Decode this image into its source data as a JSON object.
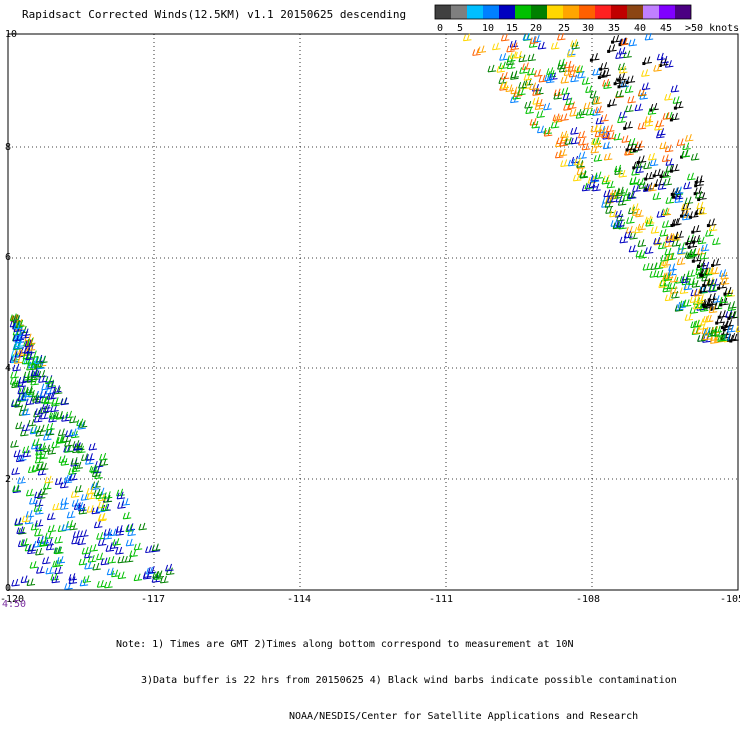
{
  "title": "Rapidsact Corrected Winds(12.5KM) v1.1 20150625 descending",
  "legend": {
    "colors": [
      "#404040",
      "#7f7f7f",
      "#00bfff",
      "#0080ff",
      "#0000c0",
      "#00c000",
      "#008000",
      "#ffd700",
      "#ffa500",
      "#ff6000",
      "#ff2020",
      "#c00000",
      "#8b4513",
      "#c080ff",
      "#8000ff",
      "#4b0082"
    ],
    "labels": [
      "0",
      "5",
      "10",
      "15",
      "20",
      "25",
      "30",
      "35",
      "40",
      "45",
      ">50 knots"
    ]
  },
  "axes": {
    "x_ticks": [
      "-120",
      "-117",
      "-114",
      "-111",
      "-108",
      "-105"
    ],
    "y_ticks": [
      "0",
      "2",
      "4",
      "6",
      "8",
      "10"
    ]
  },
  "time_label": "4:50",
  "notes": [
    "Note: 1) Times are GMT 2)Times along bottom correspond to measurement at 10N",
    "3)Data buffer is 22 hrs from 20150625 4) Black wind barbs indicate possible contamination",
    "NOAA/NESDIS/Center for Satellite Applications and Research"
  ]
}
